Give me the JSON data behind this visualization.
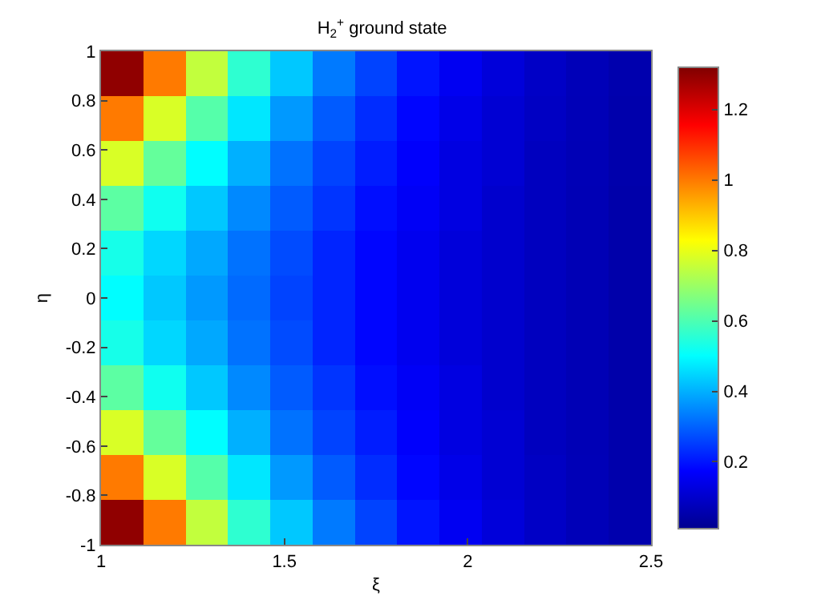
{
  "chart_data": {
    "type": "heatmap",
    "title": "H$_{2}$$^{+}$ ground state",
    "xlabel": "ξ",
    "ylabel": "η",
    "xlim": [
      1,
      2.5
    ],
    "xticks": [
      1,
      1.5,
      2,
      2.5
    ],
    "ylim": [
      -1,
      1
    ],
    "yticks": [
      -1,
      -0.8,
      -0.6,
      -0.4,
      -0.2,
      0,
      0.2,
      0.4,
      0.6,
      0.8,
      1
    ],
    "clim": [
      0.01,
      1.32
    ],
    "cticks": [
      0.2,
      0.4,
      0.6,
      0.8,
      1,
      1.2
    ],
    "cells": [
      [
        1.3,
        1.0,
        0.75,
        0.56,
        0.43,
        0.33,
        0.26,
        0.2,
        0.155,
        0.12,
        0.09,
        0.07,
        0.055
      ],
      [
        1.0,
        0.78,
        0.61,
        0.47,
        0.37,
        0.29,
        0.23,
        0.18,
        0.14,
        0.11,
        0.086,
        0.068,
        0.053
      ],
      [
        0.78,
        0.63,
        0.5,
        0.4,
        0.32,
        0.26,
        0.21,
        0.17,
        0.13,
        0.11,
        0.08,
        0.067,
        0.052
      ],
      [
        0.62,
        0.52,
        0.43,
        0.35,
        0.29,
        0.24,
        0.19,
        0.16,
        0.13,
        0.1,
        0.08,
        0.066,
        0.05
      ],
      [
        0.53,
        0.45,
        0.39,
        0.32,
        0.27,
        0.22,
        0.18,
        0.15,
        0.12,
        0.1,
        0.08,
        0.065,
        0.05
      ],
      [
        0.5,
        0.43,
        0.37,
        0.31,
        0.26,
        0.22,
        0.18,
        0.15,
        0.12,
        0.1,
        0.08,
        0.065,
        0.05
      ],
      [
        0.53,
        0.45,
        0.39,
        0.32,
        0.27,
        0.22,
        0.18,
        0.15,
        0.12,
        0.1,
        0.08,
        0.065,
        0.05
      ],
      [
        0.62,
        0.52,
        0.43,
        0.35,
        0.29,
        0.24,
        0.19,
        0.16,
        0.13,
        0.1,
        0.08,
        0.066,
        0.05
      ],
      [
        0.78,
        0.63,
        0.5,
        0.4,
        0.32,
        0.26,
        0.21,
        0.17,
        0.13,
        0.11,
        0.08,
        0.067,
        0.052
      ],
      [
        1.0,
        0.78,
        0.61,
        0.47,
        0.37,
        0.29,
        0.23,
        0.18,
        0.14,
        0.11,
        0.086,
        0.068,
        0.053
      ],
      [
        1.3,
        1.0,
        0.75,
        0.56,
        0.43,
        0.33,
        0.26,
        0.2,
        0.155,
        0.12,
        0.09,
        0.07,
        0.055
      ]
    ]
  }
}
